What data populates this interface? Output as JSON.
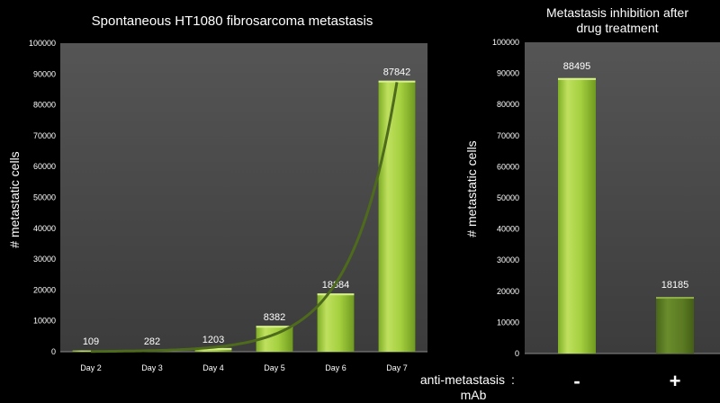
{
  "chart_data": [
    {
      "type": "bar",
      "title": "Spontaneous HT1080 fibrosarcoma metastasis",
      "ylabel": "# metastatic cells",
      "xlabel": "",
      "categories": [
        "Day 2",
        "Day 3",
        "Day 4",
        "Day 5",
        "Day 6",
        "Day 7"
      ],
      "values": [
        109,
        282,
        1203,
        8382,
        18884,
        87842
      ],
      "data_labels": [
        "109",
        "282",
        "1203",
        "8382",
        "18884",
        "87842"
      ],
      "ylim": [
        0,
        100000
      ],
      "yticks": [
        "0",
        "10000",
        "20000",
        "30000",
        "40000",
        "50000",
        "60000",
        "70000",
        "80000",
        "90000",
        "100000"
      ],
      "trendline": "exponential",
      "grid": false,
      "colors": {
        "bar": "#9fcc3b",
        "bar_light": "#d2ec8a",
        "bar_dark": "#6f9a22",
        "trend": "#4e6a1c",
        "panel": "#4a4a4a"
      }
    },
    {
      "type": "bar",
      "title_lines": [
        "Metastasis inhibition after",
        "drug treatment"
      ],
      "ylabel": "# metastatic cells",
      "xlabel": "",
      "categories": [
        "-",
        "+"
      ],
      "values": [
        88495,
        18185
      ],
      "data_labels": [
        "88495",
        "18185"
      ],
      "ylim": [
        0,
        100000
      ],
      "yticks": [
        "0",
        "10000",
        "20000",
        "30000",
        "40000",
        "50000",
        "60000",
        "70000",
        "80000",
        "90000",
        "100000"
      ],
      "treatment_label_lines": [
        "anti-metastasis",
        "mAb"
      ],
      "treatment_separator": ":",
      "grid": false,
      "colors": {
        "bar_minus": "#9fcc3b",
        "bar_plus": "#5b7a22",
        "panel": "#4a4a4a"
      }
    }
  ]
}
